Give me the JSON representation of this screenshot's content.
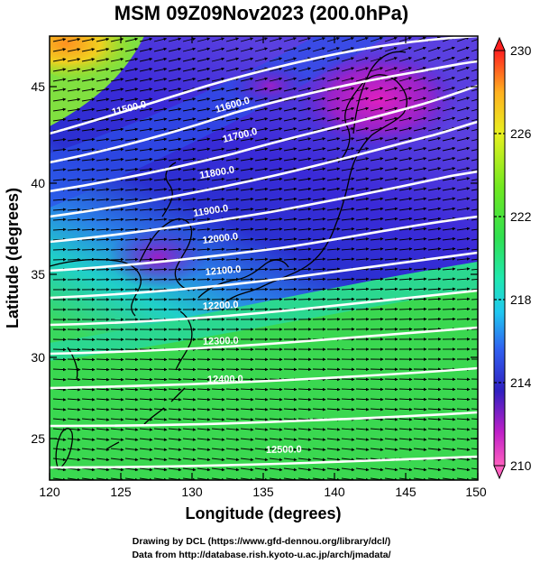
{
  "title": "MSM 09Z09Nov2023 (200.0hPa)",
  "xlabel": "Longitude (degrees)",
  "ylabel": "Latitude  (degrees)",
  "credit_line1": "Drawing by DCL (https://www.gfd-dennou.org/library/dcl/)",
  "credit_line2": "Data from http://database.rish.kyoto-u.ac.jp/arch/jmadata/",
  "map": {
    "lon_range": [
      120,
      150
    ],
    "lat_range": [
      22.4,
      47.6
    ],
    "x_ticks": [
      "120",
      "125",
      "130",
      "135",
      "140",
      "145",
      "150"
    ],
    "y_ticks": [
      "25",
      "30",
      "35",
      "40",
      "45"
    ]
  },
  "colorbar": {
    "min": 210,
    "max": 230,
    "tick_labels": [
      "230",
      "226",
      "222",
      "218",
      "214",
      "210"
    ],
    "colors": [
      "#ff2020",
      "#ffb020",
      "#e8f020",
      "#30e020",
      "#20e8a0",
      "#20c8f0",
      "#3060f0",
      "#3020c0",
      "#9020c8",
      "#f020c0",
      "#ff60c0"
    ]
  },
  "contours": {
    "labels": [
      "11500.0",
      "11600.0",
      "11700.0",
      "11800.0",
      "11900.0",
      "12000.0",
      "12100.0",
      "12200.0",
      "12300.0",
      "12400.0",
      "12500.0"
    ],
    "color": "#ffffff"
  },
  "vectors": {
    "color": "#000000"
  }
}
